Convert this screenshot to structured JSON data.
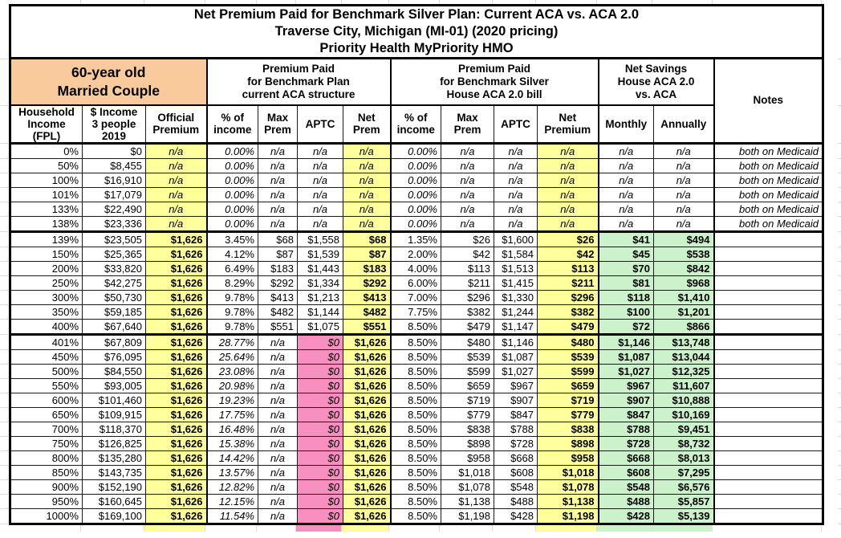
{
  "title": {
    "line1": "Net Premium Paid for Benchmark Silver Plan: Current ACA vs. ACA 2.0",
    "line2": "Traverse City, Michigan (MI-01) (2020 pricing)",
    "line3": "Priority Health MyPriority HMO"
  },
  "group_headers": {
    "profile": "60-year old\nMarried Couple",
    "current_aca": "Premium Paid\nfor Benchmark Plan\ncurrent ACA structure",
    "aca20": "Premium Paid\nfor Benchmark Silver\nHouse ACA 2.0 bill",
    "savings": "Net Savings\nHouse ACA 2.0\nvs. ACA",
    "notes": "Notes"
  },
  "column_headers": {
    "fpl": "Household\nIncome\n(FPL)",
    "income": "$ Income\n3 people\n2019",
    "official": "Official\nPremium",
    "pct1": "% of\nincome",
    "max1": "Max\nPrem",
    "aptc1": "APTC",
    "net1": "Net\nPrem",
    "pct2": "% of\nincome",
    "max2": "Max\nPrem",
    "aptc2": "APTC",
    "net2": "Net\nPremium",
    "monthly": "Monthly",
    "annually": "Annually"
  },
  "colors": {
    "header_orange": "#F9CA9C",
    "highlight_yellow": "#FFFF9C",
    "aptc_zero_pink": "#F78FC0",
    "savings_green": "#CCF2CC"
  },
  "rows": [
    {
      "band": "medicaid",
      "fpl": "0%",
      "income": "$0",
      "official": "n/a",
      "pct1": "0.00%",
      "max1": "n/a",
      "aptc1": "n/a",
      "net1": "n/a",
      "pct2": "0.00%",
      "max2": "n/a",
      "aptc2": "n/a",
      "net2": "n/a",
      "monthly": "n/a",
      "annually": "n/a",
      "notes": "both on Medicaid"
    },
    {
      "band": "medicaid",
      "fpl": "50%",
      "income": "$8,455",
      "official": "n/a",
      "pct1": "0.00%",
      "max1": "n/a",
      "aptc1": "n/a",
      "net1": "n/a",
      "pct2": "0.00%",
      "max2": "n/a",
      "aptc2": "n/a",
      "net2": "n/a",
      "monthly": "n/a",
      "annually": "n/a",
      "notes": "both on Medicaid"
    },
    {
      "band": "medicaid",
      "fpl": "100%",
      "income": "$16,910",
      "official": "n/a",
      "pct1": "0.00%",
      "max1": "n/a",
      "aptc1": "n/a",
      "net1": "n/a",
      "pct2": "0.00%",
      "max2": "n/a",
      "aptc2": "n/a",
      "net2": "n/a",
      "monthly": "n/a",
      "annually": "n/a",
      "notes": "both on Medicaid"
    },
    {
      "band": "medicaid",
      "fpl": "101%",
      "income": "$17,079",
      "official": "n/a",
      "pct1": "0.00%",
      "max1": "n/a",
      "aptc1": "n/a",
      "net1": "n/a",
      "pct2": "0.00%",
      "max2": "n/a",
      "aptc2": "n/a",
      "net2": "n/a",
      "monthly": "n/a",
      "annually": "n/a",
      "notes": "both on Medicaid"
    },
    {
      "band": "medicaid",
      "fpl": "133%",
      "income": "$22,490",
      "official": "n/a",
      "pct1": "0.00%",
      "max1": "n/a",
      "aptc1": "n/a",
      "net1": "n/a",
      "pct2": "0.00%",
      "max2": "n/a",
      "aptc2": "n/a",
      "net2": "n/a",
      "monthly": "n/a",
      "annually": "n/a",
      "notes": "both on Medicaid"
    },
    {
      "band": "medicaid",
      "fpl": "138%",
      "income": "$23,336",
      "official": "n/a",
      "pct1": "0.00%",
      "max1": "n/a",
      "aptc1": "n/a",
      "net1": "n/a",
      "pct2": "0.00%",
      "max2": "n/a",
      "aptc2": "n/a",
      "net2": "n/a",
      "monthly": "n/a",
      "annually": "n/a",
      "notes": "both on Medicaid"
    },
    {
      "band": "subsidy",
      "fpl": "139%",
      "income": "$23,505",
      "official": "$1,626",
      "pct1": "3.45%",
      "max1": "$68",
      "aptc1": "$1,558",
      "net1": "$68",
      "pct2": "1.35%",
      "max2": "$26",
      "aptc2": "$1,600",
      "net2": "$26",
      "monthly": "$41",
      "annually": "$494",
      "notes": ""
    },
    {
      "band": "subsidy",
      "fpl": "150%",
      "income": "$25,365",
      "official": "$1,626",
      "pct1": "4.12%",
      "max1": "$87",
      "aptc1": "$1,539",
      "net1": "$87",
      "pct2": "2.00%",
      "max2": "$42",
      "aptc2": "$1,584",
      "net2": "$42",
      "monthly": "$45",
      "annually": "$538",
      "notes": ""
    },
    {
      "band": "subsidy",
      "fpl": "200%",
      "income": "$33,820",
      "official": "$1,626",
      "pct1": "6.49%",
      "max1": "$183",
      "aptc1": "$1,443",
      "net1": "$183",
      "pct2": "4.00%",
      "max2": "$113",
      "aptc2": "$1,513",
      "net2": "$113",
      "monthly": "$70",
      "annually": "$842",
      "notes": ""
    },
    {
      "band": "subsidy",
      "fpl": "250%",
      "income": "$42,275",
      "official": "$1,626",
      "pct1": "8.29%",
      "max1": "$292",
      "aptc1": "$1,334",
      "net1": "$292",
      "pct2": "6.00%",
      "max2": "$211",
      "aptc2": "$1,415",
      "net2": "$211",
      "monthly": "$81",
      "annually": "$968",
      "notes": ""
    },
    {
      "band": "subsidy",
      "fpl": "300%",
      "income": "$50,730",
      "official": "$1,626",
      "pct1": "9.78%",
      "max1": "$413",
      "aptc1": "$1,213",
      "net1": "$413",
      "pct2": "7.00%",
      "max2": "$296",
      "aptc2": "$1,330",
      "net2": "$296",
      "monthly": "$118",
      "annually": "$1,410",
      "notes": ""
    },
    {
      "band": "subsidy",
      "fpl": "350%",
      "income": "$59,185",
      "official": "$1,626",
      "pct1": "9.78%",
      "max1": "$482",
      "aptc1": "$1,144",
      "net1": "$482",
      "pct2": "7.75%",
      "max2": "$382",
      "aptc2": "$1,244",
      "net2": "$382",
      "monthly": "$100",
      "annually": "$1,201",
      "notes": ""
    },
    {
      "band": "subsidy",
      "fpl": "400%",
      "income": "$67,640",
      "official": "$1,626",
      "pct1": "9.78%",
      "max1": "$551",
      "aptc1": "$1,075",
      "net1": "$551",
      "pct2": "8.50%",
      "max2": "$479",
      "aptc2": "$1,147",
      "net2": "$479",
      "monthly": "$72",
      "annually": "$866",
      "notes": ""
    },
    {
      "band": "cliff",
      "fpl": "401%",
      "income": "$67,809",
      "official": "$1,626",
      "pct1": "28.77%",
      "max1": "n/a",
      "aptc1": "$0",
      "net1": "$1,626",
      "pct2": "8.50%",
      "max2": "$480",
      "aptc2": "$1,146",
      "net2": "$480",
      "monthly": "$1,146",
      "annually": "$13,748",
      "notes": ""
    },
    {
      "band": "cliff",
      "fpl": "450%",
      "income": "$76,095",
      "official": "$1,626",
      "pct1": "25.64%",
      "max1": "n/a",
      "aptc1": "$0",
      "net1": "$1,626",
      "pct2": "8.50%",
      "max2": "$539",
      "aptc2": "$1,087",
      "net2": "$539",
      "monthly": "$1,087",
      "annually": "$13,044",
      "notes": ""
    },
    {
      "band": "cliff",
      "fpl": "500%",
      "income": "$84,550",
      "official": "$1,626",
      "pct1": "23.08%",
      "max1": "n/a",
      "aptc1": "$0",
      "net1": "$1,626",
      "pct2": "8.50%",
      "max2": "$599",
      "aptc2": "$1,027",
      "net2": "$599",
      "monthly": "$1,027",
      "annually": "$12,325",
      "notes": ""
    },
    {
      "band": "cliff",
      "fpl": "550%",
      "income": "$93,005",
      "official": "$1,626",
      "pct1": "20.98%",
      "max1": "n/a",
      "aptc1": "$0",
      "net1": "$1,626",
      "pct2": "8.50%",
      "max2": "$659",
      "aptc2": "$967",
      "net2": "$659",
      "monthly": "$967",
      "annually": "$11,607",
      "notes": ""
    },
    {
      "band": "cliff",
      "fpl": "600%",
      "income": "$101,460",
      "official": "$1,626",
      "pct1": "19.23%",
      "max1": "n/a",
      "aptc1": "$0",
      "net1": "$1,626",
      "pct2": "8.50%",
      "max2": "$719",
      "aptc2": "$907",
      "net2": "$719",
      "monthly": "$907",
      "annually": "$10,888",
      "notes": ""
    },
    {
      "band": "cliff",
      "fpl": "650%",
      "income": "$109,915",
      "official": "$1,626",
      "pct1": "17.75%",
      "max1": "n/a",
      "aptc1": "$0",
      "net1": "$1,626",
      "pct2": "8.50%",
      "max2": "$779",
      "aptc2": "$847",
      "net2": "$779",
      "monthly": "$847",
      "annually": "$10,169",
      "notes": ""
    },
    {
      "band": "cliff",
      "fpl": "700%",
      "income": "$118,370",
      "official": "$1,626",
      "pct1": "16.48%",
      "max1": "n/a",
      "aptc1": "$0",
      "net1": "$1,626",
      "pct2": "8.50%",
      "max2": "$838",
      "aptc2": "$788",
      "net2": "$838",
      "monthly": "$788",
      "annually": "$9,451",
      "notes": ""
    },
    {
      "band": "cliff",
      "fpl": "750%",
      "income": "$126,825",
      "official": "$1,626",
      "pct1": "15.38%",
      "max1": "n/a",
      "aptc1": "$0",
      "net1": "$1,626",
      "pct2": "8.50%",
      "max2": "$898",
      "aptc2": "$728",
      "net2": "$898",
      "monthly": "$728",
      "annually": "$8,732",
      "notes": ""
    },
    {
      "band": "cliff",
      "fpl": "800%",
      "income": "$135,280",
      "official": "$1,626",
      "pct1": "14.42%",
      "max1": "n/a",
      "aptc1": "$0",
      "net1": "$1,626",
      "pct2": "8.50%",
      "max2": "$958",
      "aptc2": "$668",
      "net2": "$958",
      "monthly": "$668",
      "annually": "$8,013",
      "notes": ""
    },
    {
      "band": "cliff",
      "fpl": "850%",
      "income": "$143,735",
      "official": "$1,626",
      "pct1": "13.57%",
      "max1": "n/a",
      "aptc1": "$0",
      "net1": "$1,626",
      "pct2": "8.50%",
      "max2": "$1,018",
      "aptc2": "$608",
      "net2": "$1,018",
      "monthly": "$608",
      "annually": "$7,295",
      "notes": ""
    },
    {
      "band": "cliff",
      "fpl": "900%",
      "income": "$152,190",
      "official": "$1,626",
      "pct1": "12.82%",
      "max1": "n/a",
      "aptc1": "$0",
      "net1": "$1,626",
      "pct2": "8.50%",
      "max2": "$1,078",
      "aptc2": "$548",
      "net2": "$1,078",
      "monthly": "$548",
      "annually": "$6,576",
      "notes": ""
    },
    {
      "band": "cliff",
      "fpl": "950%",
      "income": "$160,645",
      "official": "$1,626",
      "pct1": "12.15%",
      "max1": "n/a",
      "aptc1": "$0",
      "net1": "$1,626",
      "pct2": "8.50%",
      "max2": "$1,138",
      "aptc2": "$488",
      "net2": "$1,138",
      "monthly": "$488",
      "annually": "$5,857",
      "notes": ""
    },
    {
      "band": "cliff",
      "fpl": "1000%",
      "income": "$169,100",
      "official": "$1,626",
      "pct1": "11.54%",
      "max1": "n/a",
      "aptc1": "$0",
      "net1": "$1,626",
      "pct2": "8.50%",
      "max2": "$1,198",
      "aptc2": "$428",
      "net2": "$1,198",
      "monthly": "$428",
      "annually": "$5,139",
      "notes": ""
    }
  ]
}
